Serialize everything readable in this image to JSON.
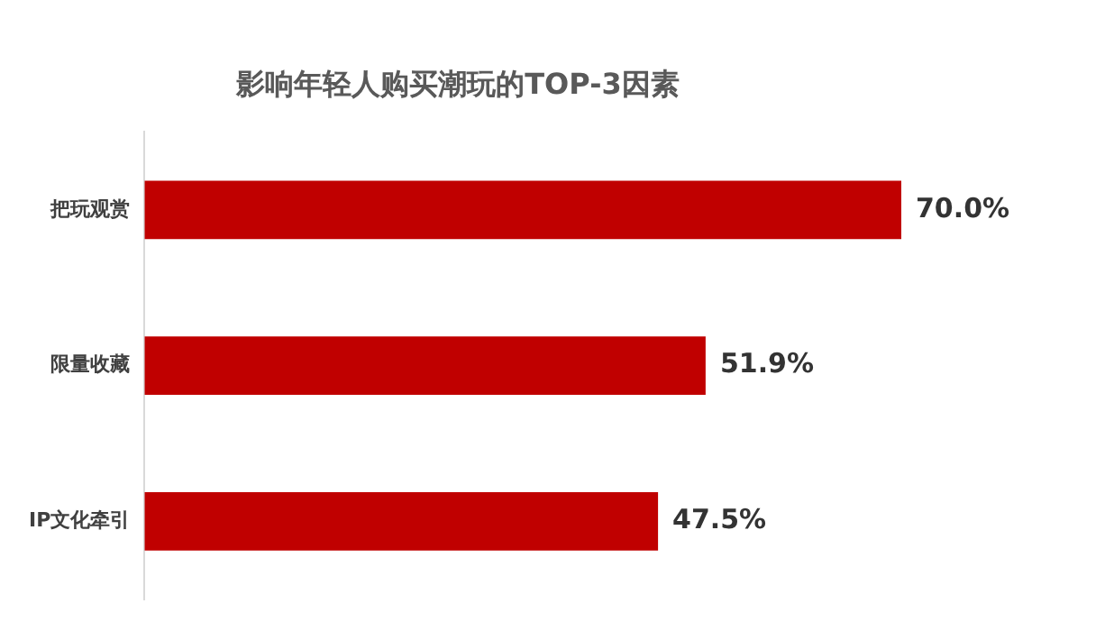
{
  "chart_data": {
    "type": "bar",
    "title": "影响年轻人购买潮玩的TOP-3因素",
    "orientation": "horizontal",
    "categories": [
      "把玩观赏",
      "限量收藏",
      "IP文化牵引"
    ],
    "values": [
      70.0,
      51.9,
      47.5
    ],
    "value_labels": [
      "70.0%",
      "51.9%",
      "47.5%"
    ],
    "color": "#c00000",
    "legend": false
  }
}
